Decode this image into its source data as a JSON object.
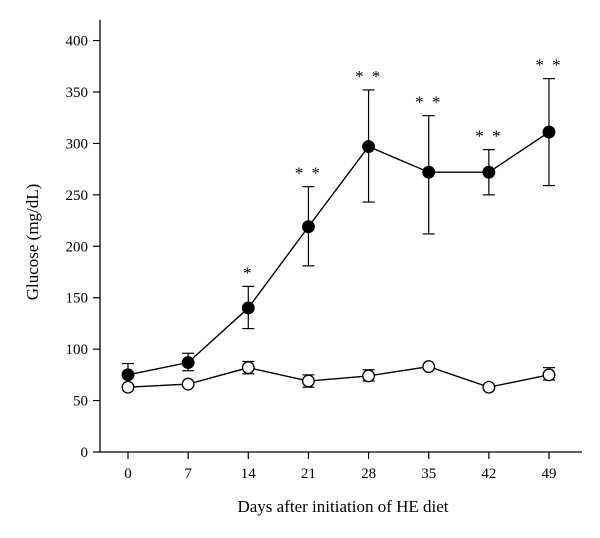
{
  "chart_data": {
    "type": "line",
    "x": [
      0,
      7,
      14,
      21,
      28,
      35,
      42,
      49
    ],
    "xticks": [
      "0",
      "7",
      "14",
      "21",
      "28",
      "35",
      "42",
      "49"
    ],
    "yticks": [
      "0",
      "50",
      "100",
      "150",
      "200",
      "250",
      "300",
      "350",
      "400"
    ],
    "ylim": [
      0,
      420
    ],
    "xlabel": "Days after initiation of HE diet",
    "ylabel": "Glucose (mg/dL)",
    "grid": false,
    "series": [
      {
        "marker": "filled-circle",
        "color": "#000000",
        "values": [
          75,
          87,
          140,
          219,
          297,
          272,
          272,
          311
        ],
        "error_up": [
          11,
          9,
          21,
          39,
          55,
          55,
          22,
          52
        ],
        "error_down": [
          0,
          8,
          20,
          38,
          54,
          60,
          22,
          52
        ],
        "annotations": [
          "",
          "",
          "*",
          "**",
          "**",
          "**",
          "**",
          "**"
        ]
      },
      {
        "marker": "open-circle",
        "color": "#000000",
        "values": [
          63,
          66,
          82,
          69,
          74,
          83,
          63,
          75
        ],
        "error_up": [
          0,
          0,
          6,
          6,
          6,
          0,
          0,
          7
        ],
        "error_down": [
          0,
          0,
          6,
          6,
          5,
          0,
          0,
          5
        ]
      }
    ]
  }
}
